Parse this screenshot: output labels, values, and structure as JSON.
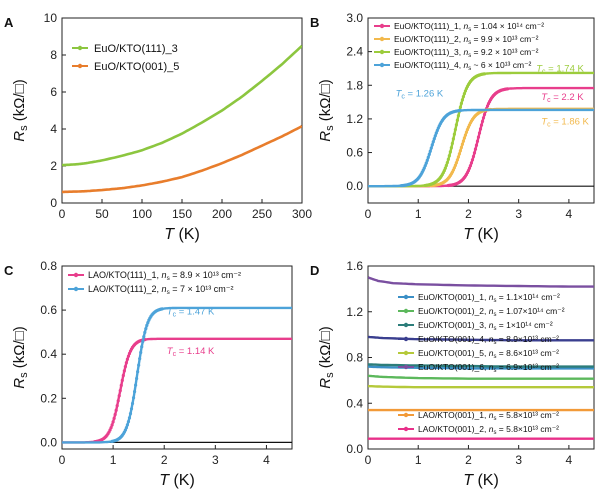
{
  "figure": {
    "panels": [
      "A",
      "B",
      "C",
      "D"
    ]
  },
  "chart_data": [
    {
      "panel": "A",
      "type": "line",
      "xlabel": "T (K)",
      "ylabel": "Rs (kΩ/□)",
      "xlim": [
        0,
        300
      ],
      "ylim": [
        0,
        10
      ],
      "xticks": [
        0,
        50,
        100,
        150,
        200,
        250,
        300
      ],
      "yticks": [
        0,
        2,
        4,
        6,
        8,
        10
      ],
      "legend_position": "top-left",
      "series": [
        {
          "name": "EuO/KTO(111)_3",
          "color": "#8cc63f",
          "x": [
            0,
            10,
            20,
            30,
            50,
            75,
            100,
            125,
            150,
            175,
            200,
            225,
            250,
            275,
            300
          ],
          "y": [
            2.05,
            2.07,
            2.1,
            2.15,
            2.3,
            2.55,
            2.85,
            3.25,
            3.75,
            4.35,
            5.0,
            5.75,
            6.6,
            7.5,
            8.5
          ]
        },
        {
          "name": "EuO/KTO(001)_5",
          "color": "#e87d2c",
          "x": [
            0,
            10,
            20,
            30,
            50,
            75,
            100,
            125,
            150,
            175,
            200,
            225,
            250,
            275,
            300
          ],
          "y": [
            0.6,
            0.61,
            0.62,
            0.64,
            0.7,
            0.8,
            0.95,
            1.15,
            1.4,
            1.75,
            2.15,
            2.6,
            3.1,
            3.6,
            4.15
          ]
        }
      ]
    },
    {
      "panel": "B",
      "type": "line",
      "xlabel": "T (K)",
      "ylabel": "Rs (kΩ/□)",
      "xlim": [
        0,
        4.5
      ],
      "ylim": [
        -0.3,
        3.0
      ],
      "xticks": [
        0,
        1,
        2,
        3,
        4
      ],
      "yticks": [
        0.0,
        0.6,
        1.2,
        1.8,
        2.4,
        3.0
      ],
      "legend_position": "top-left",
      "series": [
        {
          "name": "EuO/KTO(111)_1",
          "ns_label": "ns = 1.04 × 10¹⁴ cm⁻²",
          "color": "#e83e8c",
          "tc": 2.2,
          "rn": 1.75,
          "width": 0.12
        },
        {
          "name": "EuO/KTO(111)_2",
          "ns_label": "ns = 9.9 × 10¹³ cm⁻²",
          "color": "#f2b94d",
          "tc": 1.86,
          "rn": 1.38,
          "width": 0.12
        },
        {
          "name": "EuO/KTO(111)_3",
          "ns_label": "ns = 9.2 × 10¹³ cm⁻²",
          "color": "#9ccc3c",
          "tc": 1.74,
          "rn": 2.02,
          "width": 0.12
        },
        {
          "name": "EuO/KTO(111)_4",
          "ns_label": "ns ~ 6 × 10¹³ cm⁻²",
          "color": "#4da3d9",
          "tc": 1.26,
          "rn": 1.36,
          "width": 0.12
        }
      ],
      "annotations": [
        {
          "text": "Tc = 1.74 K",
          "color": "#9ccc3c",
          "x": 3.35,
          "y": 2.05
        },
        {
          "text": "Tc = 2.2 K",
          "color": "#e83e8c",
          "x": 3.45,
          "y": 1.54
        },
        {
          "text": "Tc = 1.26 K",
          "color": "#4da3d9",
          "x": 0.55,
          "y": 1.6
        },
        {
          "text": "Tc = 1.86 K",
          "color": "#f2b94d",
          "x": 3.45,
          "y": 1.1
        }
      ]
    },
    {
      "panel": "C",
      "type": "line",
      "xlabel": "T (K)",
      "ylabel": "Rs (kΩ/□)",
      "xlim": [
        0,
        4.5
      ],
      "ylim": [
        -0.03,
        0.8
      ],
      "xticks": [
        0,
        1,
        2,
        3,
        4
      ],
      "yticks": [
        0.0,
        0.2,
        0.4,
        0.6,
        0.8
      ],
      "legend_position": "top-left",
      "series": [
        {
          "name": "LAO/KTO(111)_1",
          "ns_label": "ns = 8.9 × 10¹³ cm⁻²",
          "color": "#e83e8c",
          "tc": 1.14,
          "rn": 0.47,
          "width": 0.1
        },
        {
          "name": "LAO/KTO(111)_2",
          "ns_label": "ns = 7 × 10¹³ cm⁻²",
          "color": "#4da3d9",
          "tc": 1.47,
          "rn": 0.61,
          "width": 0.1
        }
      ],
      "annotations": [
        {
          "text": "Tc = 1.47 K",
          "color": "#4da3d9",
          "x": 2.05,
          "y": 0.58
        },
        {
          "text": "Tc = 1.14 K",
          "color": "#e83e8c",
          "x": 2.05,
          "y": 0.4
        }
      ]
    },
    {
      "panel": "D",
      "type": "line",
      "xlabel": "T (K)",
      "ylabel": "Rs (kΩ/□)",
      "xlim": [
        0,
        4.5
      ],
      "ylim": [
        0.0,
        1.6
      ],
      "xticks": [
        0,
        1,
        2,
        3,
        4
      ],
      "yticks": [
        0.0,
        0.4,
        0.8,
        1.2,
        1.6
      ],
      "legend_position": "center",
      "series": [
        {
          "name": "EuO/KTO(001)_1",
          "ns_label": "ns = 1.1×10¹⁴ cm⁻²",
          "color": "#3b8fc6",
          "x": [
            0,
            0.3,
            1,
            2,
            3,
            4,
            4.5
          ],
          "y": [
            0.72,
            0.715,
            0.71,
            0.705,
            0.705,
            0.705,
            0.705
          ]
        },
        {
          "name": "EuO/KTO(001)_2",
          "ns_label": "ns = 1.07×10¹⁴ cm⁻²",
          "color": "#5cb85c",
          "x": [
            0,
            0.3,
            1,
            2,
            3,
            4,
            4.5
          ],
          "y": [
            0.64,
            0.63,
            0.62,
            0.615,
            0.615,
            0.615,
            0.615
          ]
        },
        {
          "name": "EuO/KTO(001)_3",
          "ns_label": "ns = 1×10¹⁴ cm⁻²",
          "color": "#2c7d7a",
          "x": [
            0,
            0.3,
            1,
            2,
            3,
            4,
            4.5
          ],
          "y": [
            0.74,
            0.735,
            0.73,
            0.725,
            0.72,
            0.72,
            0.72
          ]
        },
        {
          "name": "EuO/KTO(001)_4",
          "ns_label": "ns = 8.9×10¹³ cm⁻²",
          "color": "#3a3f8f",
          "x": [
            0,
            0.3,
            1,
            2,
            3,
            4,
            4.5
          ],
          "y": [
            0.98,
            0.97,
            0.96,
            0.955,
            0.95,
            0.95,
            0.95
          ]
        },
        {
          "name": "EuO/KTO(001)_5",
          "ns_label": "ns = 8.6×10¹³ cm⁻²",
          "color": "#b5c93a",
          "x": [
            0,
            0.3,
            1,
            2,
            3,
            4,
            4.5
          ],
          "y": [
            0.55,
            0.545,
            0.54,
            0.54,
            0.54,
            0.54,
            0.54
          ]
        },
        {
          "name": "EuO/KTO(001)_6",
          "ns_label": "ns = 6.9×10¹³ cm⁻²",
          "color": "#7a4fa0",
          "x": [
            0,
            0.2,
            0.5,
            1,
            2,
            3,
            4,
            4.5
          ],
          "y": [
            1.5,
            1.47,
            1.45,
            1.44,
            1.43,
            1.425,
            1.42,
            1.42
          ]
        },
        {
          "name": "LAO/KTO(001)_1",
          "ns_label": "ns = 5.8×10¹³ cm⁻²",
          "color": "#f29a38",
          "x": [
            0,
            1,
            2,
            3,
            4,
            4.5
          ],
          "y": [
            0.34,
            0.34,
            0.34,
            0.34,
            0.34,
            0.34
          ]
        },
        {
          "name": "LAO/KTO(001)_2",
          "ns_label": "ns = 5.8×10¹³ cm⁻²",
          "color": "#e8308a",
          "x": [
            0,
            1,
            2,
            3,
            4,
            4.5
          ],
          "y": [
            0.09,
            0.09,
            0.09,
            0.09,
            0.09,
            0.09
          ]
        }
      ]
    }
  ]
}
